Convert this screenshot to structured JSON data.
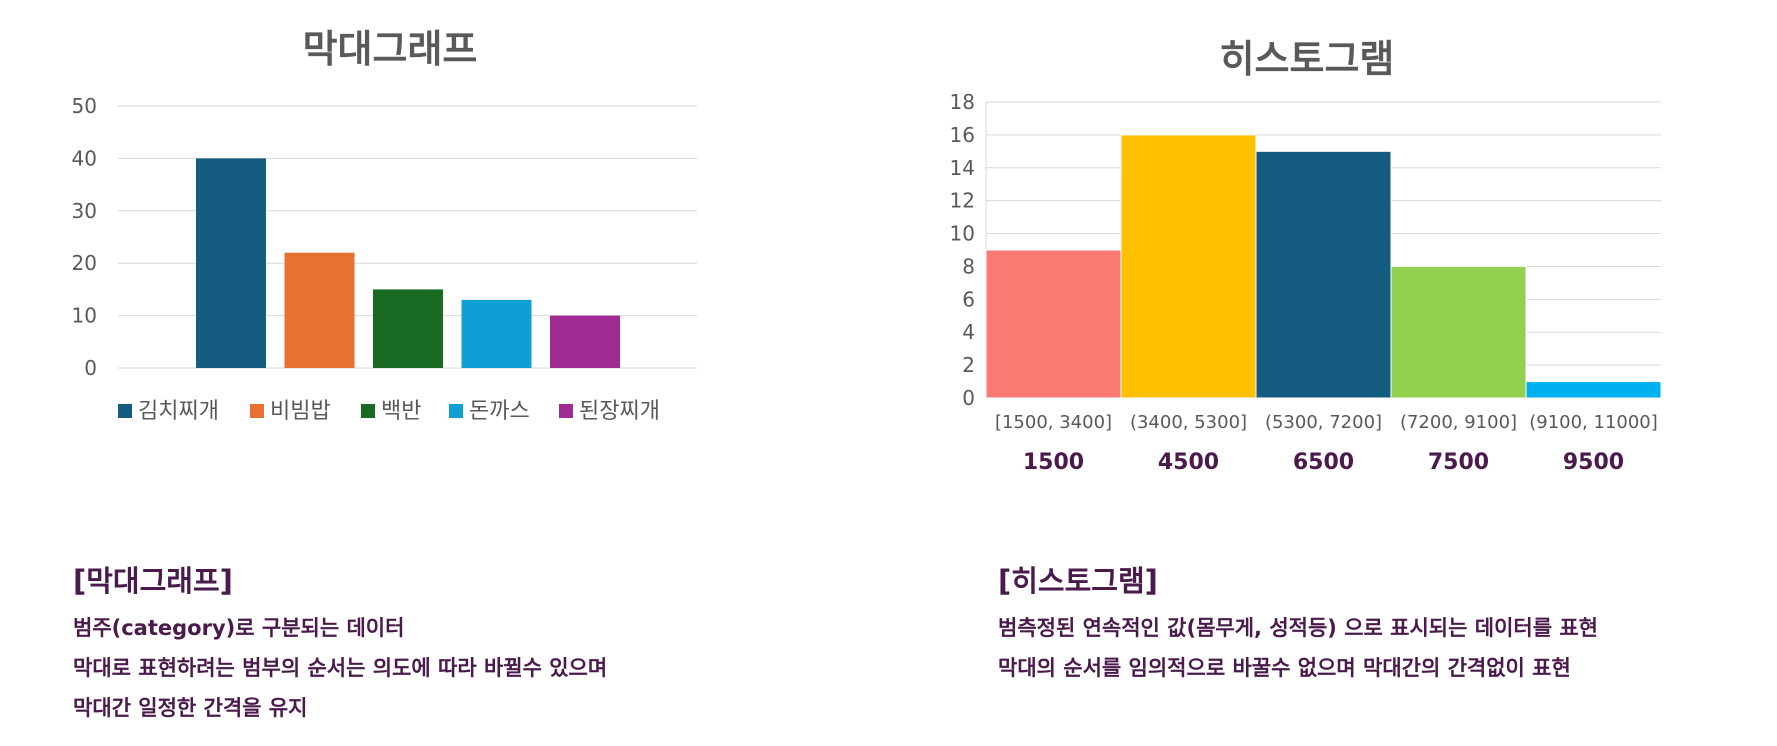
{
  "chart_data": [
    {
      "type": "bar",
      "title": "막대그래프",
      "categories": [
        "김치찌개",
        "비빔밥",
        "백반",
        "돈까스",
        "된장찌개"
      ],
      "values": [
        40,
        22,
        15,
        13,
        10
      ],
      "colors": [
        "#145d80",
        "#e87131",
        "#196b24",
        "#0f9ed5",
        "#a02b93"
      ],
      "ylim": [
        0,
        50
      ],
      "yticks": [
        0,
        10,
        20,
        30,
        40,
        50
      ],
      "grid": true,
      "legend_position": "bottom"
    },
    {
      "type": "bar",
      "title": "히스토그램",
      "categories": [
        "[1500, 3400]",
        "(3400, 5300]",
        "(5300, 7200]",
        "(7200, 9100]",
        "(9100, 11000]"
      ],
      "values": [
        9,
        16,
        15,
        8,
        1
      ],
      "colors": [
        "#fb7b74",
        "#ffc000",
        "#145d80",
        "#92d050",
        "#00b0f0"
      ],
      "representative_labels": [
        "1500",
        "4500",
        "6500",
        "7500",
        "9500"
      ],
      "ylim": [
        0,
        18
      ],
      "yticks": [
        0,
        2,
        4,
        6,
        8,
        10,
        12,
        14,
        16,
        18
      ],
      "grid": true,
      "bar_gap": 0
    }
  ],
  "notes": {
    "left": {
      "heading": "[막대그래프]",
      "lines": [
        "범주(category)로 구분되는 데이터",
        "막대로 표현하려는 범부의 순서는 의도에 따라 바뀔수 있으며",
        "막대간 일정한 간격을 유지"
      ]
    },
    "right": {
      "heading": "[히스토그램]",
      "lines": [
        "범측정된 연속적인 값(몸무게, 성적등) 으로 표시되는 데이터를 표현",
        "막대의 순서를 임의적으로 바꿀수 없으며 막대간의 간격없이 표현"
      ]
    }
  }
}
